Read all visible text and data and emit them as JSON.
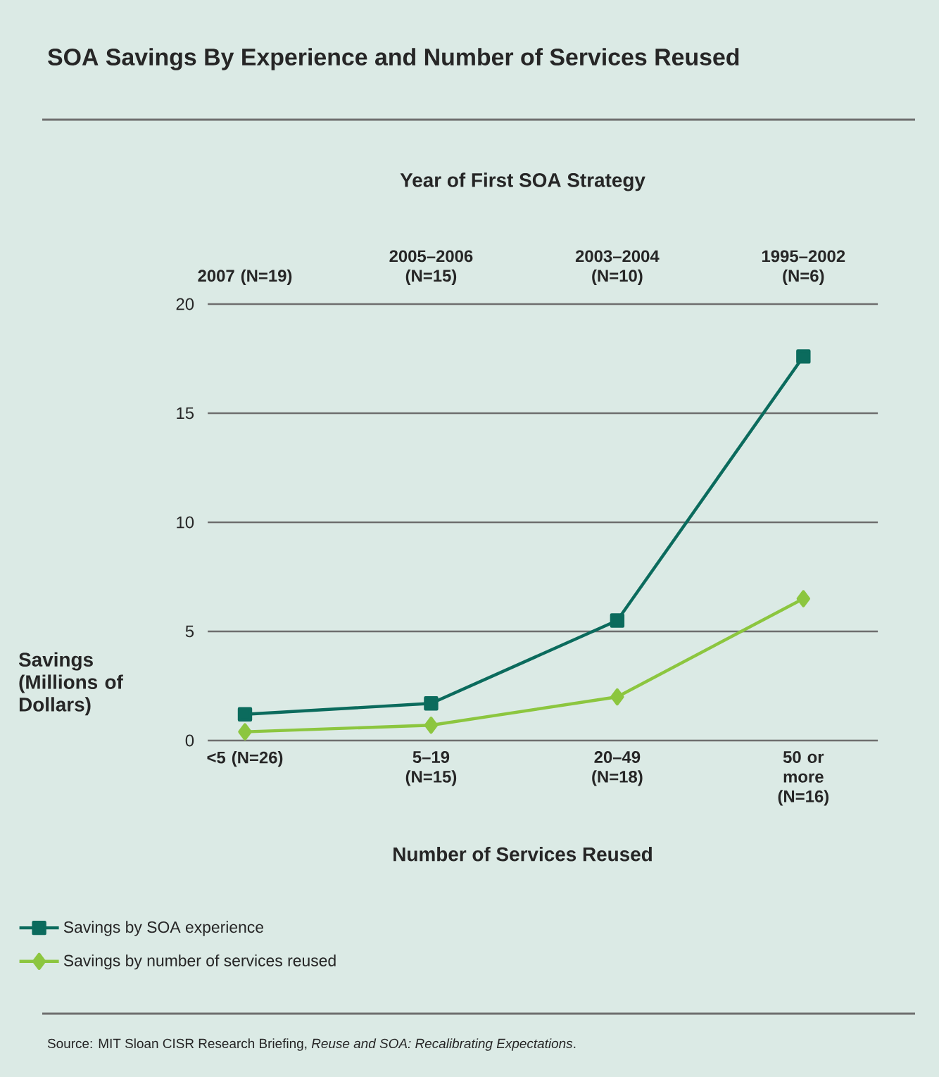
{
  "chart_data": {
    "type": "line",
    "title": "SOA Savings By Experience and Number of Services Reused",
    "xlabel": "Number of Services Reused",
    "x2label": "Year of First SOA Strategy",
    "ylabel": "Savings (Millions of Dollars)",
    "categories": [
      "<5 (N=26)",
      "5–19 (N=15)",
      "20–49 (N=18)",
      "50 or more (N=16)"
    ],
    "series": [
      {
        "name": "Savings by SOA experience",
        "color": "#0b6b5d",
        "marker": "square",
        "values": [
          1.2,
          1.7,
          5.5,
          17.6
        ]
      },
      {
        "name": "Savings by number of services reused",
        "color": "#8cc63f",
        "marker": "diamond",
        "values": [
          0.4,
          0.7,
          2.0,
          6.5
        ]
      }
    ],
    "ylim": [
      0,
      20
    ],
    "yticks": [
      0,
      5,
      10,
      15,
      20
    ],
    "grid": "y",
    "legend": "bottom",
    "annotations": [
      "2007 (N=19)",
      "2005–2006 (N=15)",
      "2003–2004 (N=10)",
      "1995–2002 (N=6)",
      "Source: MIT Sloan CISR Research Briefing, *Reuse and SOA: Recalibrating Expectations*."
    ]
  }
}
